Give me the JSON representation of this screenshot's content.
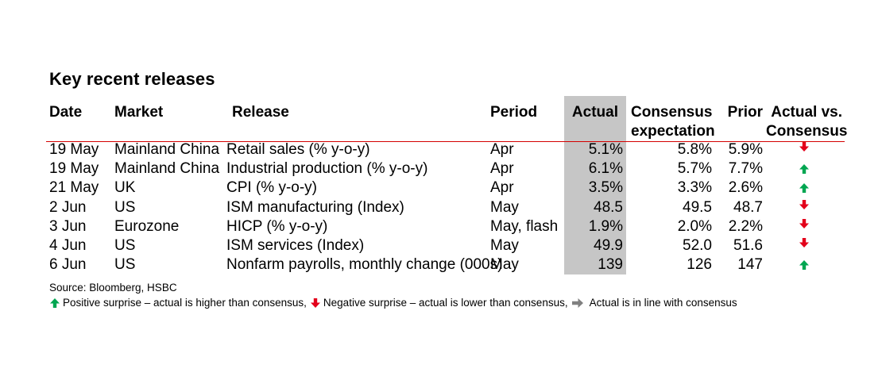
{
  "title": "Key recent releases",
  "colors": {
    "up": "#00a651",
    "down": "#e3001b",
    "flat": "#808080",
    "rule": "#d40000",
    "actual_shade": "#c6c6c6"
  },
  "headers": {
    "date": "Date",
    "market": "Market",
    "release": "Release",
    "period": "Period",
    "actual": "Actual",
    "consensus_l1": "Consensus",
    "consensus_l2": "expectation",
    "prior": "Prior",
    "avc_l1": "Actual vs.",
    "avc_l2": "Consensus"
  },
  "rows": [
    {
      "date": "19 May",
      "market": "Mainland China",
      "release": "Retail sales (% y-o-y)",
      "period": "Apr",
      "actual": "5.1%",
      "consensus": "5.8%",
      "prior": "5.9%",
      "surprise": "down"
    },
    {
      "date": "19 May",
      "market": "Mainland China",
      "release": "Industrial production (% y-o-y)",
      "period": "Apr",
      "actual": "6.1%",
      "consensus": "5.7%",
      "prior": "7.7%",
      "surprise": "up"
    },
    {
      "date": "21 May",
      "market": "UK",
      "release": "CPI (% y-o-y)",
      "period": "Apr",
      "actual": "3.5%",
      "consensus": "3.3%",
      "prior": "2.6%",
      "surprise": "up"
    },
    {
      "date": "2 Jun",
      "market": "US",
      "release": "ISM manufacturing (Index)",
      "period": "May",
      "actual": "48.5",
      "consensus": "49.5",
      "prior": "48.7",
      "surprise": "down"
    },
    {
      "date": "3 Jun",
      "market": "Eurozone",
      "release": "HICP (% y-o-y)",
      "period": "May, flash",
      "actual": "1.9%",
      "consensus": "2.0%",
      "prior": "2.2%",
      "surprise": "down"
    },
    {
      "date": "4 Jun",
      "market": "US",
      "release": "ISM services (Index)",
      "period": "May",
      "actual": "49.9",
      "consensus": "52.0",
      "prior": "51.6",
      "surprise": "down"
    },
    {
      "date": "6 Jun",
      "market": "US",
      "release": "Nonfarm payrolls, monthly change (000s)",
      "period": "May",
      "actual": "139",
      "consensus": "126",
      "prior": "147",
      "surprise": "up"
    }
  ],
  "source": "Source: Bloomberg, HSBC",
  "legend": {
    "positive": "Positive surprise – actual is higher than consensus,",
    "negative": "Negative surprise – actual is lower than consensus,",
    "inline": "Actual is in line with consensus"
  }
}
